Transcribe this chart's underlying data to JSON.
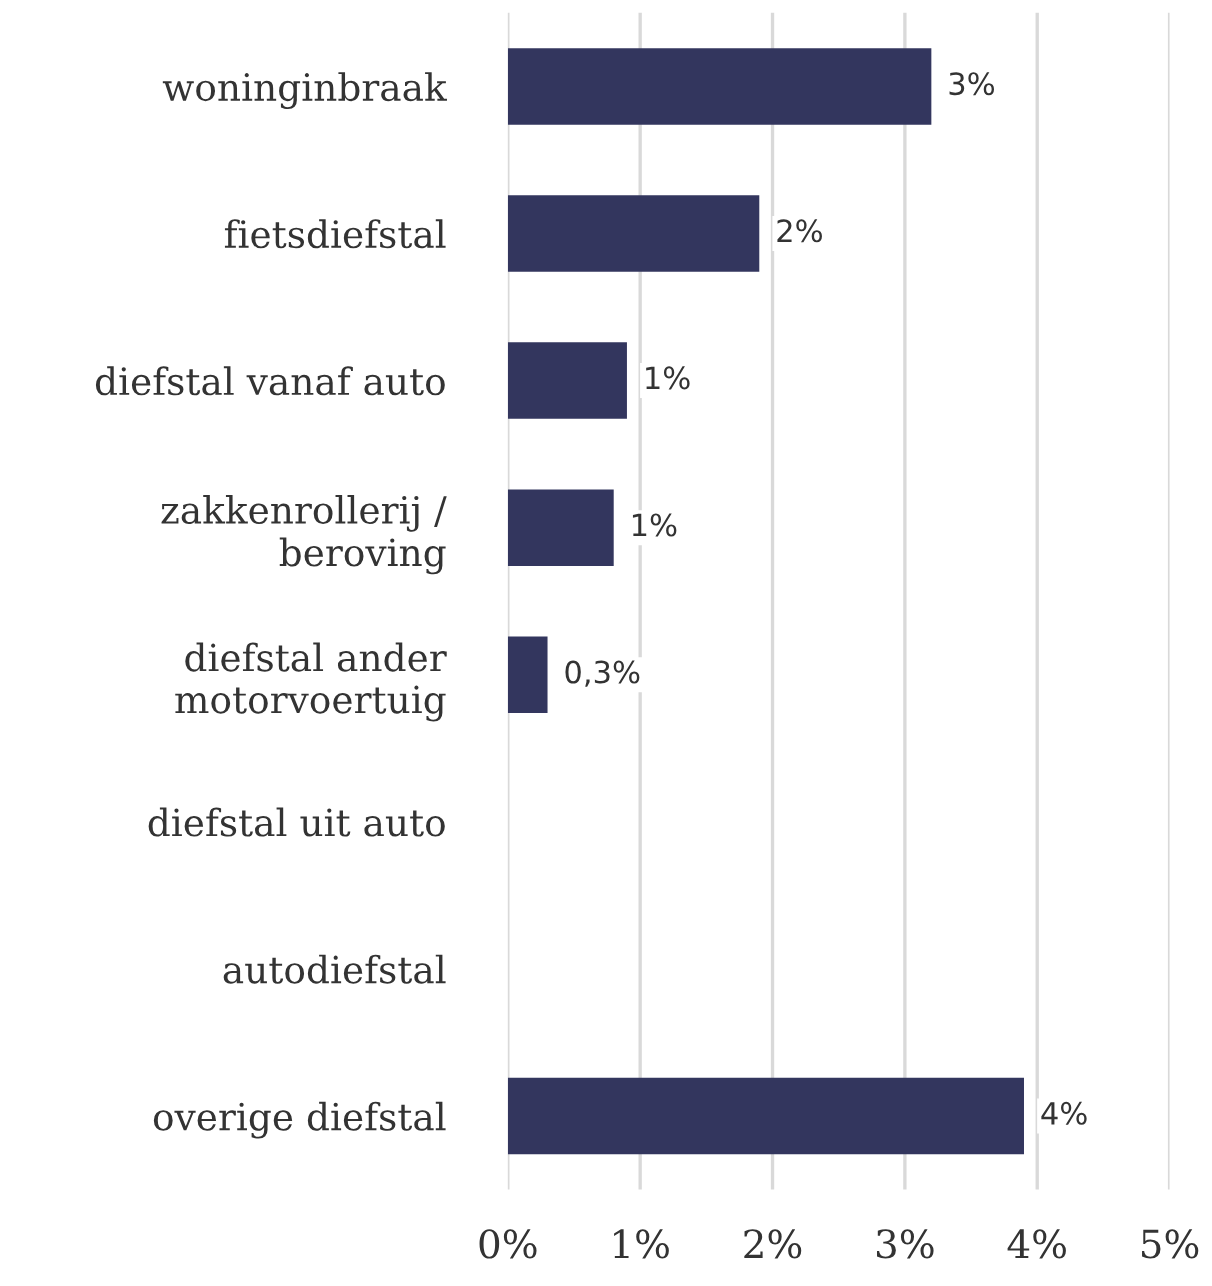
{
  "chart_data": {
    "type": "bar",
    "orientation": "horizontal",
    "categories": [
      "woninginbraak",
      "fietsdiefstal",
      "diefstal vanaf auto",
      "zakkenrollerij /\nberoving",
      "diefstal ander\nmotorvoertuig",
      "diefstal uit auto",
      "autodiefstal",
      "overige diefstal"
    ],
    "values": [
      3.2,
      1.9,
      0.9,
      0.8,
      0.3,
      null,
      null,
      3.9
    ],
    "value_labels": [
      "3%",
      "2%",
      "1%",
      "1%",
      "0,3%",
      null,
      null,
      "4%"
    ],
    "color": "#33365e",
    "xlim": [
      0,
      5
    ],
    "xticks": [
      {
        "value": 0,
        "label": "0%"
      },
      {
        "value": 1,
        "label": "1%"
      },
      {
        "value": 2,
        "label": "2%"
      },
      {
        "value": 3,
        "label": "3%"
      },
      {
        "value": 4,
        "label": "4%"
      },
      {
        "value": 5,
        "label": "5%"
      }
    ],
    "grid": "x",
    "legend": false
  }
}
